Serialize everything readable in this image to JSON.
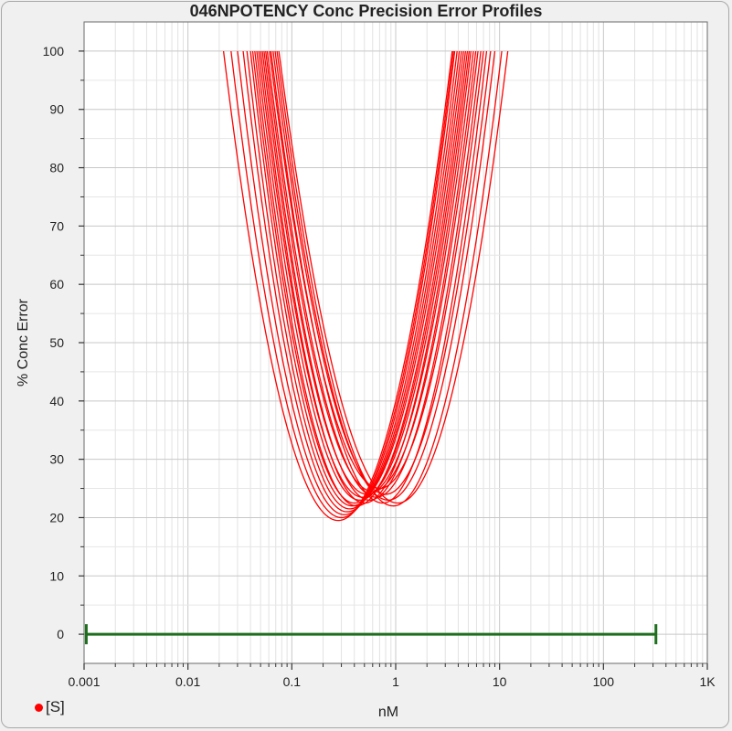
{
  "chart_data": {
    "type": "line",
    "title": "046NPOTENCY Conc Precision Error Profiles",
    "xlabel": "nM",
    "ylabel": "% Conc Error",
    "xscale": "log",
    "xlim": [
      0.001,
      1000
    ],
    "ylim": [
      -5,
      105
    ],
    "xtick_values": [
      0.001,
      0.01,
      0.1,
      1,
      10,
      100,
      1000
    ],
    "xtick_labels": [
      "0.001",
      "0.01",
      "0.1",
      "1",
      "10",
      "100",
      "1K"
    ],
    "ytick_values": [
      0,
      10,
      20,
      30,
      40,
      50,
      60,
      70,
      80,
      90,
      100
    ],
    "ytick_labels": [
      "0",
      "10",
      "20",
      "30",
      "40",
      "50",
      "60",
      "70",
      "80",
      "90",
      "100"
    ],
    "grid": true,
    "curve_color": "#ff0000",
    "curve_model": "y = min + k * (log10(x) - log10(x_min))^2, clipped at y = 100",
    "series": [
      {
        "x_min": 0.28,
        "min": 19.5,
        "x_at_100_low": 0.022,
        "x_at_100_high": 3.5
      },
      {
        "x_min": 0.3,
        "min": 20.0,
        "x_at_100_low": 0.026,
        "x_at_100_high": 3.6
      },
      {
        "x_min": 0.32,
        "min": 20.5,
        "x_at_100_low": 0.03,
        "x_at_100_high": 3.7
      },
      {
        "x_min": 0.34,
        "min": 21.0,
        "x_at_100_low": 0.034,
        "x_at_100_high": 3.9
      },
      {
        "x_min": 0.36,
        "min": 21.5,
        "x_at_100_low": 0.037,
        "x_at_100_high": 4.1
      },
      {
        "x_min": 0.38,
        "min": 22.0,
        "x_at_100_low": 0.04,
        "x_at_100_high": 4.3
      },
      {
        "x_min": 0.4,
        "min": 22.5,
        "x_at_100_low": 0.042,
        "x_at_100_high": 4.5
      },
      {
        "x_min": 0.42,
        "min": 22.0,
        "x_at_100_low": 0.044,
        "x_at_100_high": 4.7
      },
      {
        "x_min": 0.45,
        "min": 23.0,
        "x_at_100_low": 0.046,
        "x_at_100_high": 4.9
      },
      {
        "x_min": 0.48,
        "min": 23.5,
        "x_at_100_low": 0.048,
        "x_at_100_high": 5.1
      },
      {
        "x_min": 0.5,
        "min": 22.5,
        "x_at_100_low": 0.05,
        "x_at_100_high": 5.3
      },
      {
        "x_min": 0.53,
        "min": 24.0,
        "x_at_100_low": 0.052,
        "x_at_100_high": 5.6
      },
      {
        "x_min": 0.56,
        "min": 23.0,
        "x_at_100_low": 0.054,
        "x_at_100_high": 5.9
      },
      {
        "x_min": 0.6,
        "min": 24.5,
        "x_at_100_low": 0.056,
        "x_at_100_high": 6.2
      },
      {
        "x_min": 0.65,
        "min": 23.5,
        "x_at_100_low": 0.058,
        "x_at_100_high": 6.6
      },
      {
        "x_min": 0.7,
        "min": 25.0,
        "x_at_100_low": 0.061,
        "x_at_100_high": 7.0
      },
      {
        "x_min": 0.75,
        "min": 22.5,
        "x_at_100_low": 0.063,
        "x_at_100_high": 7.5
      },
      {
        "x_min": 0.8,
        "min": 24.0,
        "x_at_100_low": 0.066,
        "x_at_100_high": 8.2
      },
      {
        "x_min": 0.85,
        "min": 23.0,
        "x_at_100_low": 0.069,
        "x_at_100_high": 9.0
      },
      {
        "x_min": 0.95,
        "min": 22.0,
        "x_at_100_low": 0.072,
        "x_at_100_high": 10.5
      },
      {
        "x_min": 1.05,
        "min": 22.5,
        "x_at_100_low": 0.075,
        "x_at_100_high": 12.0
      }
    ],
    "range_bar": {
      "x_start": 0.00105,
      "x_end": 320,
      "y": 0,
      "color": "#1e6e1e"
    }
  },
  "legend": {
    "label": "[S]",
    "marker_color": "#ff0000"
  }
}
